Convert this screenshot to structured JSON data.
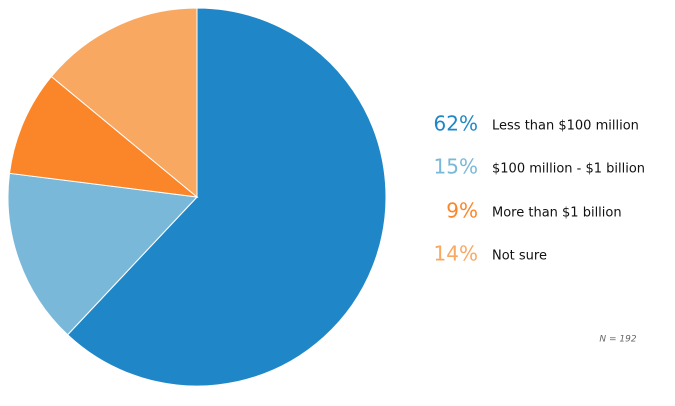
{
  "chart_data": {
    "type": "pie",
    "categories": [
      "Less than $100 million",
      "$100 million - $1 billion",
      "More than $1 billion",
      "Not sure"
    ],
    "values": [
      62,
      15,
      9,
      14
    ],
    "value_labels": [
      "62%",
      "15%",
      "9%",
      "14%"
    ],
    "colors": [
      "#1f87c8",
      "#7ab8d9",
      "#fb8629",
      "#f9a862"
    ],
    "note": "N = 192"
  }
}
